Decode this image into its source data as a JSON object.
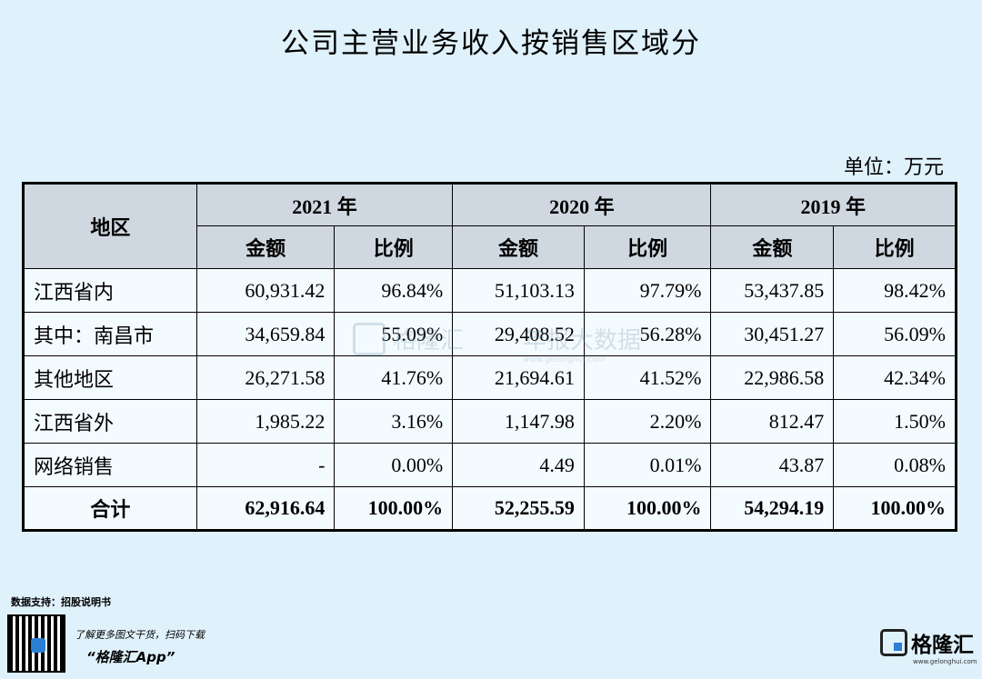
{
  "title": "公司主营业务收入按销售区域分",
  "unit": "单位：万元",
  "table": {
    "region_header": "地区",
    "years": [
      "2021 年",
      "2020 年",
      "2019 年"
    ],
    "subheaders": [
      "金额",
      "比例"
    ],
    "rows": [
      {
        "region": "江西省内",
        "cells": [
          "60,931.42",
          "96.84%",
          "51,103.13",
          "97.79%",
          "53,437.85",
          "98.42%"
        ]
      },
      {
        "region": "其中：南昌市",
        "cells": [
          "34,659.84",
          "55.09%",
          "29,408.52",
          "56.28%",
          "30,451.27",
          "56.09%"
        ]
      },
      {
        "region": "其他地区",
        "cells": [
          "26,271.58",
          "41.76%",
          "21,694.61",
          "41.52%",
          "22,986.58",
          "42.34%"
        ]
      },
      {
        "region": "江西省外",
        "cells": [
          "1,985.22",
          "3.16%",
          "1,147.98",
          "2.20%",
          "812.47",
          "1.50%"
        ]
      },
      {
        "region": "网络销售",
        "cells": [
          "-",
          "0.00%",
          "4.49",
          "0.01%",
          "43.87",
          "0.08%"
        ]
      },
      {
        "region": "合计",
        "cells": [
          "62,916.64",
          "100.00%",
          "52,255.59",
          "100.00%",
          "54,294.19",
          "100.00%"
        ]
      }
    ]
  },
  "watermark": {
    "brand": "格隆汇",
    "text": "年报大数据",
    "url": "www.gelonghui.com"
  },
  "footer": {
    "source": "数据支持：招股说明书",
    "promo_line1": "了解更多图文干货，扫码下载",
    "promo_line2": "“格隆汇App”",
    "logo_text": "格隆汇",
    "logo_url": "www.gelonghui.com"
  }
}
